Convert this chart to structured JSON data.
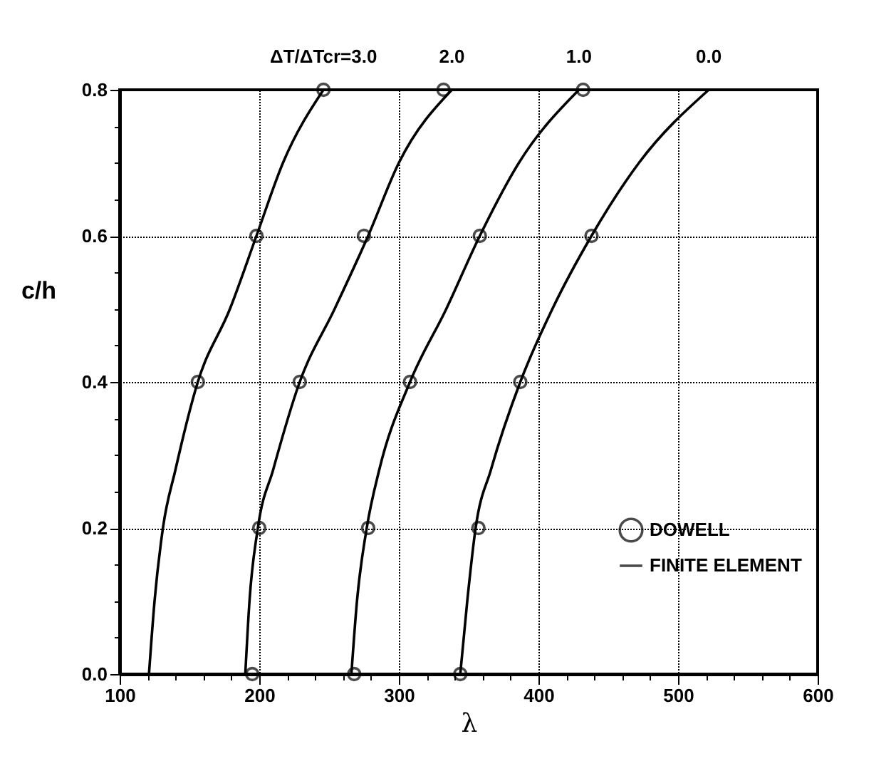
{
  "chart_data": {
    "type": "line",
    "xlabel": "λ",
    "ylabel": "c/h",
    "xlim": [
      100,
      600
    ],
    "ylim": [
      0,
      0.8
    ],
    "xticks": [
      100,
      200,
      300,
      400,
      500,
      600,
      {
        "value": 120,
        "label": null
      },
      {
        "value": 140,
        "label": null
      },
      {
        "value": 160,
        "label": null
      },
      {
        "value": 180,
        "label": null
      },
      {
        "value": 220,
        "label": null
      },
      {
        "value": 240,
        "label": null
      },
      {
        "value": 260,
        "label": null
      },
      {
        "value": 280,
        "label": null
      },
      {
        "value": 320,
        "label": null
      },
      {
        "value": 340,
        "label": null
      },
      {
        "value": 360,
        "label": null
      },
      {
        "value": 380,
        "label": null
      },
      {
        "value": 420,
        "label": null
      },
      {
        "value": 440,
        "label": null
      },
      {
        "value": 460,
        "label": null
      },
      {
        "value": 480,
        "label": null
      },
      {
        "value": 520,
        "label": null
      },
      {
        "value": 540,
        "label": null
      },
      {
        "value": 560,
        "label": null
      },
      {
        "value": 580,
        "label": null
      }
    ],
    "yticks": [
      {
        "value": 0,
        "label": "0.0"
      },
      {
        "value": 0.2,
        "label": "0.2"
      },
      {
        "value": 0.4,
        "label": "0.4"
      },
      {
        "value": 0.6,
        "label": "0.6"
      },
      {
        "value": 0.8,
        "label": "0.8"
      },
      {
        "value": 0.05,
        "label": null
      },
      {
        "value": 0.1,
        "label": null
      },
      {
        "value": 0.15,
        "label": null
      },
      {
        "value": 0.25,
        "label": null
      },
      {
        "value": 0.3,
        "label": null
      },
      {
        "value": 0.35,
        "label": null
      },
      {
        "value": 0.45,
        "label": null
      },
      {
        "value": 0.5,
        "label": null
      },
      {
        "value": 0.55,
        "label": null
      },
      {
        "value": 0.65,
        "label": null
      },
      {
        "value": 0.7,
        "label": null
      },
      {
        "value": 0.75,
        "label": null
      }
    ],
    "grid": true,
    "legend": "bottom right",
    "marker": "none",
    "line_style": "solid",
    "series": [
      {
        "name": "FINITE ELEMENT",
        "color": "#000000",
        "x": [
          121,
          125,
          131,
          140,
          156,
          179,
          198,
          217,
          246
        ],
        "values": [
          0,
          0.1,
          0.2,
          0.28,
          0.4,
          0.5,
          0.6,
          0.7,
          0.8
        ]
      },
      {
        "color": "#000000",
        "x": [
          190,
          193,
          199,
          210,
          229,
          254,
          278,
          300,
          338
        ],
        "values": [
          0,
          0.1,
          0.2,
          0.28,
          0.4,
          0.5,
          0.6,
          0.7,
          0.8
        ]
      },
      {
        "color": "#000000",
        "x": [
          266,
          270,
          277,
          286,
          308,
          334,
          358,
          386,
          429
        ],
        "values": [
          0,
          0.1,
          0.2,
          0.28,
          0.4,
          0.5,
          0.6,
          0.7,
          0.8
        ]
      },
      {
        "color": "#000000",
        "x": [
          344,
          349,
          355,
          366,
          387,
          410,
          438,
          472,
          522
        ],
        "values": [
          0,
          0.1,
          0.2,
          0.28,
          0.4,
          0.5,
          0.6,
          0.7,
          0.8
        ]
      },
      {
        "name": "DOWELL",
        "type": "scatter",
        "marker": "circle",
        "color": "#000000",
        "x": [
          246,
          198,
          156,
          200,
          195,
          332,
          275,
          229,
          278,
          268,
          432,
          358,
          308,
          357,
          344,
          438,
          387
        ],
        "values": [
          0.8,
          0.6,
          0.4,
          0.2,
          0,
          0.8,
          0.6,
          0.4,
          0.2,
          0,
          0.8,
          0.6,
          0.4,
          0.2,
          0,
          0.6,
          0.4
        ]
      }
    ],
    "annotations": [
      {
        "text": "ΔT/ΔTcr=3.0",
        "x": 246,
        "y": 0.8
      },
      {
        "text": "2.0",
        "x": 338,
        "y": 0.8
      },
      {
        "text": "1.0",
        "x": 429,
        "y": 0.8
      },
      {
        "text": "0.0",
        "x": 522,
        "y": 0.8
      }
    ]
  }
}
